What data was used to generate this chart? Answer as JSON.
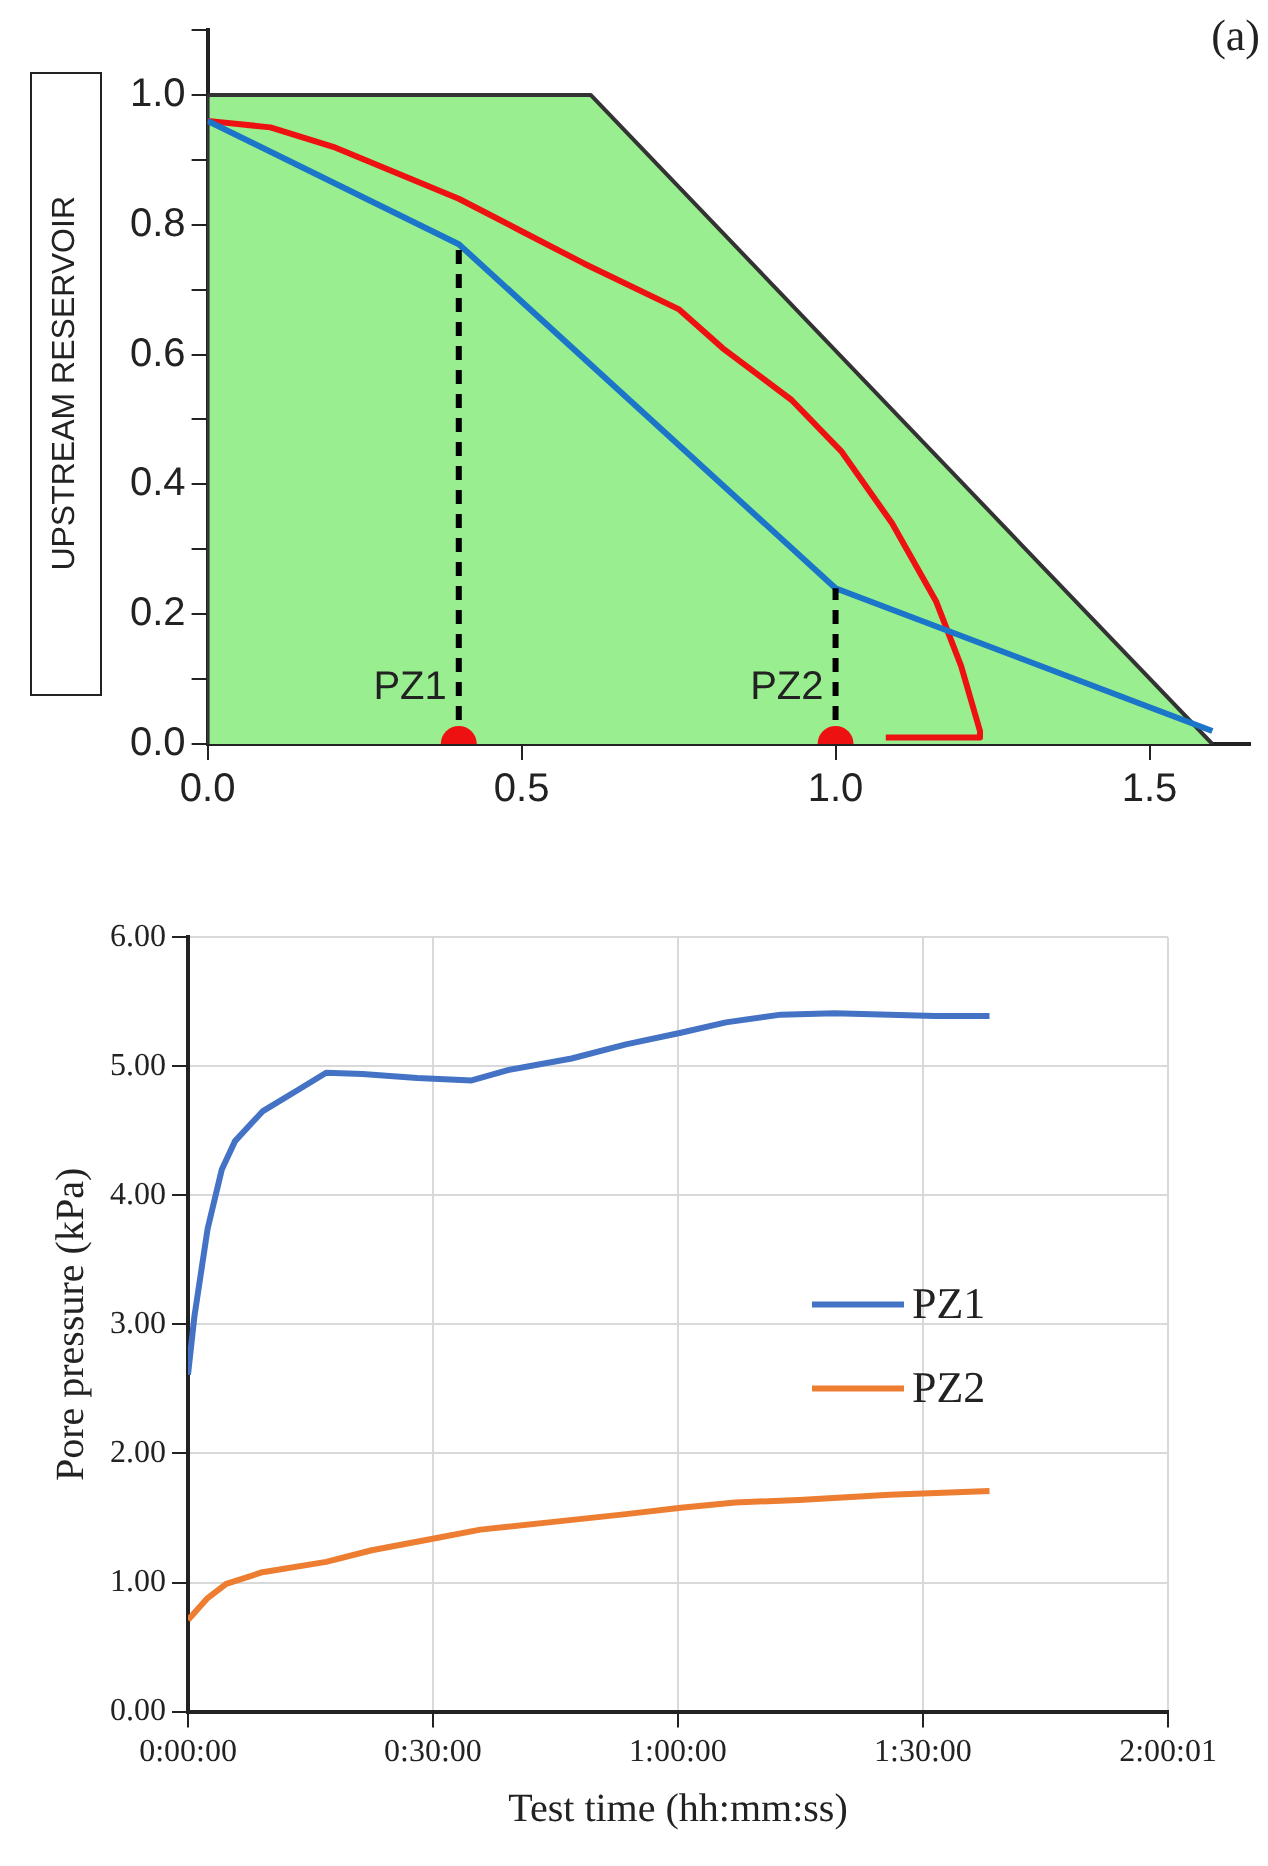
{
  "chart_data": [
    {
      "type": "line",
      "xlim": [
        0,
        1.66
      ],
      "ylim": [
        0,
        1.1
      ],
      "xticks": [
        {
          "value": 0,
          "label": "0.0"
        },
        0.5,
        {
          "value": 1,
          "label": "1.0"
        },
        1.5
      ],
      "yticks": [
        {
          "value": 0,
          "label": "0.0"
        },
        {
          "value": 0.1,
          "label": null
        },
        {
          "value": 0.2,
          "label": "0.2"
        },
        {
          "value": 0.3,
          "label": null
        },
        {
          "value": 0.4,
          "label": "0.4"
        },
        {
          "value": 0.5,
          "label": null
        },
        {
          "value": 0.6,
          "label": "0.6"
        },
        {
          "value": 0.7,
          "label": null
        },
        {
          "value": 0.8,
          "label": "0.8"
        },
        {
          "value": 0.9,
          "label": null
        },
        {
          "value": 1.0,
          "label": "1.0"
        },
        {
          "value": 1.1,
          "label": null
        }
      ],
      "ylabel": "UPSTREAM RESERVOIR",
      "grid": false,
      "legend": false,
      "marker": "none",
      "annotations": [
        "(a)"
      ],
      "series": [
        {
          "type": "area",
          "color": "#99ef8f",
          "x": [
            0,
            0,
            0.61,
            1.6
          ],
          "values": [
            0,
            1.0,
            1.0,
            0
          ]
        },
        {
          "color": "#ee1111",
          "x": [
            0,
            0.1,
            0.2,
            0.3,
            0.4,
            0.5,
            0.6,
            0.75,
            0.82,
            0.93,
            1.01,
            1.09,
            1.16,
            1.2,
            1.23,
            1.23,
            1.08
          ],
          "values": [
            0.96,
            0.95,
            0.92,
            0.88,
            0.84,
            0.79,
            0.74,
            0.67,
            0.61,
            0.53,
            0.45,
            0.34,
            0.22,
            0.12,
            0.02,
            0.01,
            0.01
          ]
        },
        {
          "color": "#1b75c9",
          "x": [
            0,
            0.4,
            1.0,
            1.6
          ],
          "values": [
            0.96,
            0.77,
            0.24,
            0.02
          ]
        },
        {
          "name": "PZ1",
          "color": "#000000",
          "line_style": "dashed",
          "x": [
            0.4,
            0.4
          ],
          "values": [
            0,
            0.77
          ]
        },
        {
          "name": "PZ2",
          "color": "#000000",
          "line_style": "dashed",
          "x": [
            1.0,
            1.0
          ],
          "values": [
            0,
            0.24
          ]
        },
        {
          "type": "scatter",
          "marker": "circle",
          "color": "#ee1111",
          "x": [
            0.4,
            1.0
          ],
          "values": [
            0,
            0
          ]
        }
      ]
    },
    {
      "type": "line",
      "xlabel": "Test time (hh:mm:ss)",
      "ylabel": "Pore pressure (kPa)",
      "grid": true,
      "legend": "right",
      "marker": "none",
      "xlim": [
        0,
        2.0003
      ],
      "xticks": [
        {
          "value": 0,
          "label": "0:00:00"
        },
        {
          "value": 0.5,
          "label": "0:30:00"
        },
        {
          "value": 1,
          "label": "1:00:00"
        },
        {
          "value": 1.5,
          "label": "1:30:00"
        },
        {
          "value": 2.0003,
          "label": "2:00:01"
        }
      ],
      "ylim": [
        0,
        6
      ],
      "yticks": [
        {
          "value": 0,
          "label": "0.00"
        },
        {
          "value": 1,
          "label": "1.00"
        },
        {
          "value": 2,
          "label": "2.00"
        },
        {
          "value": 3,
          "label": "3.00"
        },
        {
          "value": 4,
          "label": "4.00"
        },
        {
          "value": 5,
          "label": "5.00"
        },
        {
          "value": 6,
          "label": "6.00"
        }
      ],
      "series": [
        {
          "name": "PZ1",
          "color": "#4472c4",
          "x": [
            0,
            0.013,
            0.04,
            0.069,
            0.096,
            0.152,
            0.226,
            0.282,
            0.356,
            0.468,
            0.579,
            0.653,
            0.783,
            0.894,
            1.006,
            1.098,
            1.21,
            1.32,
            1.432,
            1.525,
            1.636
          ],
          "values": [
            2.61,
            3.06,
            3.74,
            4.2,
            4.42,
            4.65,
            4.82,
            4.95,
            4.94,
            4.91,
            4.89,
            4.97,
            5.06,
            5.17,
            5.26,
            5.34,
            5.4,
            5.41,
            5.4,
            5.39,
            5.39
          ]
        },
        {
          "name": "PZ2",
          "color": "#ed7d31",
          "x": [
            0,
            0.04,
            0.078,
            0.152,
            0.282,
            0.375,
            0.486,
            0.597,
            0.746,
            0.894,
            1.006,
            1.117,
            1.247,
            1.432,
            1.636
          ],
          "values": [
            0.71,
            0.88,
            0.99,
            1.08,
            1.16,
            1.25,
            1.33,
            1.41,
            1.47,
            1.53,
            1.58,
            1.62,
            1.64,
            1.68,
            1.71
          ]
        }
      ]
    }
  ]
}
